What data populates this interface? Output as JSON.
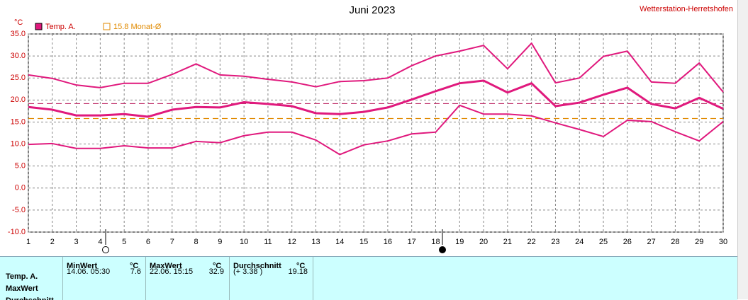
{
  "chart_data": {
    "type": "line",
    "title": "Juni 2023",
    "station": "Wetterstation-Herretshofen",
    "y_unit": "°C",
    "x": [
      1,
      2,
      3,
      4,
      5,
      6,
      7,
      8,
      9,
      10,
      11,
      12,
      13,
      14,
      15,
      16,
      17,
      18,
      19,
      20,
      21,
      22,
      23,
      24,
      25,
      26,
      27,
      28,
      29,
      30
    ],
    "xlim": [
      1,
      30
    ],
    "xticks": [
      1,
      2,
      3,
      4,
      5,
      6,
      7,
      8,
      9,
      10,
      11,
      12,
      13,
      14,
      15,
      16,
      17,
      18,
      19,
      20,
      21,
      22,
      23,
      24,
      25,
      26,
      27,
      28,
      29,
      30
    ],
    "ylim": [
      -10,
      35
    ],
    "yticks": [
      {
        "value": -10,
        "label": "-10.0"
      },
      {
        "value": -5,
        "label": "-5.0"
      },
      {
        "value": 0,
        "label": "0.0"
      },
      {
        "value": 5,
        "label": "5.0"
      },
      {
        "value": 10,
        "label": "10.0"
      },
      {
        "value": 15,
        "label": "15.0"
      },
      {
        "value": 20,
        "label": "20.0"
      },
      {
        "value": 25,
        "label": "25.0"
      },
      {
        "value": 30,
        "label": "30.0"
      },
      {
        "value": 35,
        "label": "35.0"
      }
    ],
    "grid": true,
    "series": [
      {
        "name": "Temp. A.",
        "color": "#e0197d",
        "width": 3,
        "values": [
          18.4,
          17.8,
          16.5,
          16.5,
          16.8,
          16.2,
          17.8,
          18.4,
          18.3,
          19.5,
          19.1,
          18.6,
          17.0,
          16.8,
          17.3,
          18.3,
          20.1,
          22.0,
          23.8,
          24.4,
          21.7,
          23.8,
          18.6,
          19.4,
          21.2,
          22.8,
          19.1,
          18.1,
          20.5,
          18.0
        ]
      },
      {
        "color": "#e0197d",
        "width": 2,
        "values": [
          25.7,
          24.9,
          23.4,
          22.8,
          23.8,
          23.8,
          25.8,
          28.2,
          25.7,
          25.4,
          24.7,
          24.1,
          23.0,
          24.2,
          24.4,
          25.0,
          27.8,
          30.0,
          31.1,
          32.4,
          27.1,
          32.9,
          23.9,
          25.0,
          29.9,
          31.1,
          24.1,
          23.8,
          28.4,
          21.8
        ]
      },
      {
        "color": "#e0197d",
        "width": 2,
        "values": [
          9.9,
          10.1,
          9.0,
          9.0,
          9.6,
          9.1,
          9.1,
          10.6,
          10.3,
          11.9,
          12.7,
          12.7,
          10.9,
          7.6,
          9.8,
          10.7,
          12.3,
          12.7,
          18.8,
          16.8,
          16.8,
          16.4,
          14.8,
          13.3,
          11.7,
          15.4,
          15.1,
          12.8,
          10.7,
          15.1
        ]
      }
    ],
    "hlines": [
      {
        "label": "15.8 Monat-Ø",
        "value": 15.8,
        "color": "#e08a00"
      },
      {
        "value": 19.18,
        "color": "#c0306a"
      }
    ]
  },
  "table": {
    "columns": [
      {
        "title": "MinWert",
        "unit": "°C"
      },
      {
        "title": "MaxWert",
        "unit": "°C"
      },
      {
        "title": "Durchschnitt",
        "unit": "°C"
      }
    ],
    "rows": [
      {
        "label": "Temp. A.",
        "cells": [
          [
            "14.06.  05:30",
            "7.6"
          ],
          [
            "22.06.  15:15",
            "32.9"
          ],
          [
            "(+ 3.38 )",
            "19.18"
          ]
        ]
      },
      {
        "label": "MaxWert"
      },
      {
        "label": "Durchschnitt"
      }
    ]
  }
}
